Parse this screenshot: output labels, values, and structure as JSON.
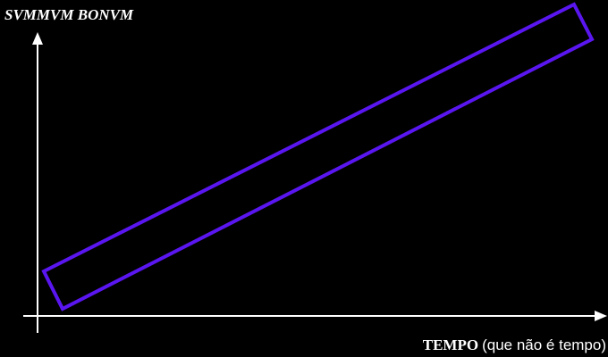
{
  "axes": {
    "y_label": "SVMMVM BONVM",
    "x_label": {
      "main": "TEMPO",
      "note": "(que não é tempo)"
    }
  }
}
